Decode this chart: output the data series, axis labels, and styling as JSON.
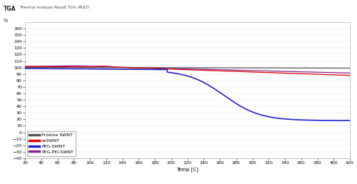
{
  "title": "TGA",
  "subtitle": "Thermal Analysis Result TGA: MULTI",
  "ylabel": "%",
  "xlabel": "Temp [C]",
  "xlim": [
    20,
    420
  ],
  "ylim": [
    -40,
    170
  ],
  "yticks": [
    -40,
    -30,
    -20,
    -10,
    0,
    10,
    20,
    30,
    40,
    50,
    60,
    70,
    80,
    90,
    100,
    110,
    120,
    130,
    140,
    150,
    160
  ],
  "xticks": [
    20,
    40,
    60,
    80,
    100,
    120,
    140,
    160,
    180,
    200,
    220,
    240,
    260,
    280,
    300,
    320,
    340,
    360,
    380,
    400,
    420
  ],
  "series": {
    "pristine": {
      "color": "#555555",
      "label": "Pristine SWNT",
      "linewidth": 0.9
    },
    "ox": {
      "color": "#DD0000",
      "label": "oxSWNT",
      "linewidth": 0.9
    },
    "peg": {
      "color": "#2222CC",
      "label": "PEG-SWNT",
      "linewidth": 1.2
    },
    "peg_pei": {
      "color": "#882288",
      "label": "PEG-PEI-SWNT",
      "linewidth": 0.9
    }
  },
  "background_color": "#ffffff",
  "grid_color": "#dddddd"
}
